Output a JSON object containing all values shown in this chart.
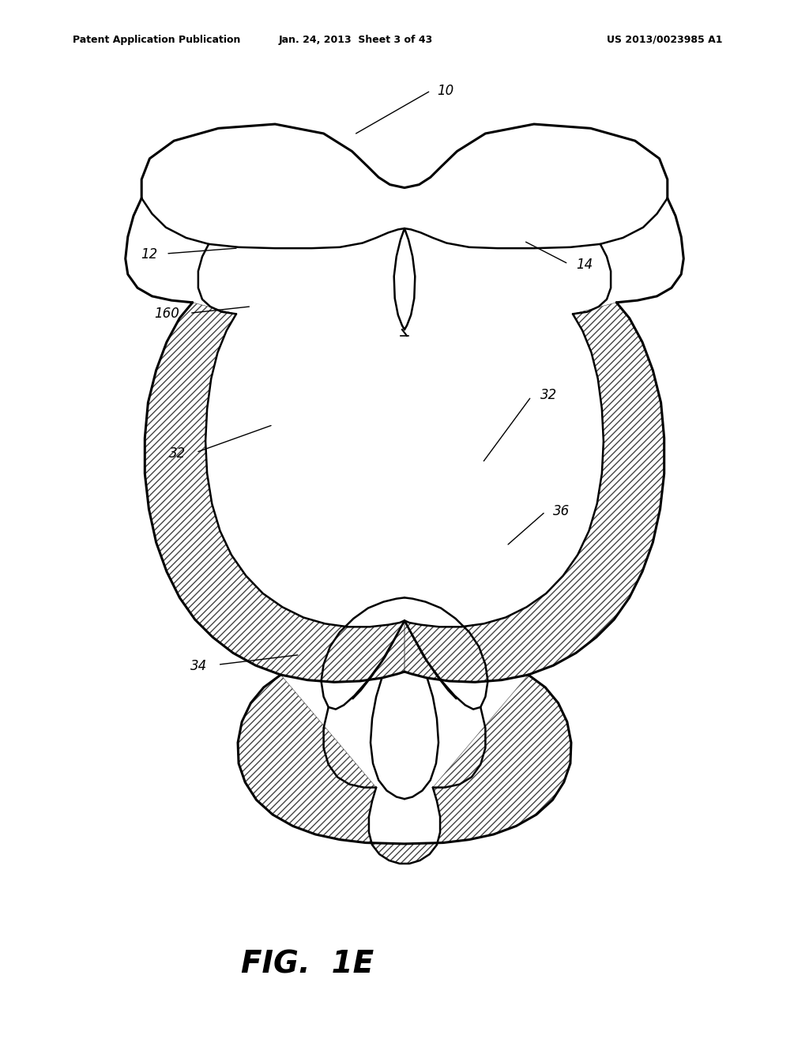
{
  "bg_color": "#ffffff",
  "line_color": "#000000",
  "header_left": "Patent Application Publication",
  "header_mid": "Jan. 24, 2013  Sheet 3 of 43",
  "header_right": "US 2013/0023985 A1",
  "figure_label": "FIG.  1E"
}
